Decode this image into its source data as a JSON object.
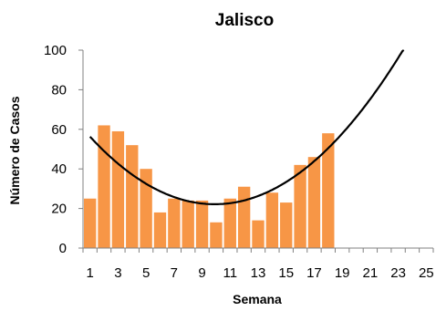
{
  "chart_data": {
    "type": "bar",
    "title": "Jalisco",
    "xlabel": "Semana",
    "ylabel": "Número de Casos",
    "x": [
      1,
      2,
      3,
      4,
      5,
      6,
      7,
      8,
      9,
      10,
      11,
      12,
      13,
      14,
      15,
      16,
      17,
      18
    ],
    "values": [
      25,
      62,
      59,
      52,
      40,
      18,
      25,
      24,
      24,
      13,
      25,
      31,
      14,
      28,
      23,
      42,
      46,
      58
    ],
    "x_range": [
      1,
      25
    ],
    "x_ticks": [
      "1",
      "3",
      "5",
      "7",
      "9",
      "11",
      "13",
      "15",
      "17",
      "19",
      "21",
      "23",
      "25"
    ],
    "y_ticks": [
      "0",
      "20",
      "40",
      "60",
      "80",
      "100"
    ],
    "ylim": [
      0,
      100
    ],
    "grid": false,
    "bar_color": "#F79646",
    "trendline": {
      "type": "polynomial-2",
      "color": "#000000",
      "x_range": [
        1,
        24
      ]
    }
  }
}
